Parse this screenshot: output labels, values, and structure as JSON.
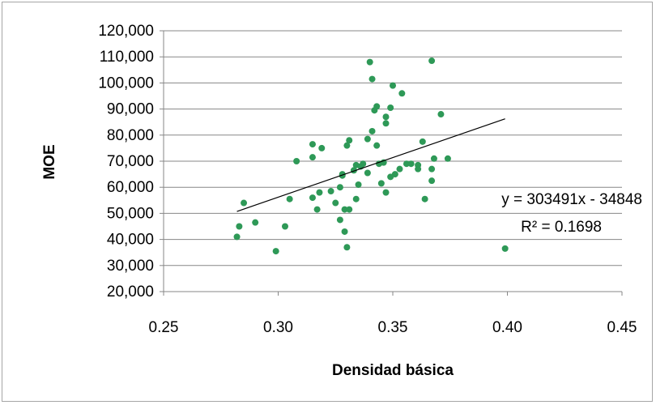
{
  "chart_data": {
    "type": "scatter",
    "xlabel": "Densidad básica",
    "ylabel": "MOE",
    "xlim": [
      0.25,
      0.45
    ],
    "ylim": [
      20000,
      120000
    ],
    "x_ticks": [
      "0.25",
      "0.30",
      "0.35",
      "0.40",
      "0.45"
    ],
    "y_ticks": [
      "20,000",
      "30,000",
      "40,000",
      "50,000",
      "60,000",
      "70,000",
      "80,000",
      "90,000",
      "100,000",
      "110,000",
      "120,000"
    ],
    "grid": "horizontal",
    "point_color": "#2e9957",
    "series": [
      {
        "points": [
          [
            0.282,
            41000
          ],
          [
            0.283,
            45000
          ],
          [
            0.285,
            54000
          ],
          [
            0.29,
            46500
          ],
          [
            0.299,
            35500
          ],
          [
            0.303,
            45000
          ],
          [
            0.305,
            55500
          ],
          [
            0.308,
            70000
          ],
          [
            0.315,
            76500
          ],
          [
            0.315,
            71500
          ],
          [
            0.315,
            56000
          ],
          [
            0.317,
            51500
          ],
          [
            0.318,
            58000
          ],
          [
            0.319,
            75000
          ],
          [
            0.323,
            58500
          ],
          [
            0.325,
            54000
          ],
          [
            0.327,
            47500
          ],
          [
            0.327,
            60000
          ],
          [
            0.328,
            65000
          ],
          [
            0.328,
            64500
          ],
          [
            0.329,
            43000
          ],
          [
            0.329,
            51500
          ],
          [
            0.33,
            37000
          ],
          [
            0.33,
            76000
          ],
          [
            0.331,
            78000
          ],
          [
            0.331,
            51500
          ],
          [
            0.333,
            66500
          ],
          [
            0.334,
            55500
          ],
          [
            0.334,
            68500
          ],
          [
            0.335,
            61000
          ],
          [
            0.336,
            68000
          ],
          [
            0.337,
            69000
          ],
          [
            0.339,
            78500
          ],
          [
            0.339,
            65500
          ],
          [
            0.34,
            108000
          ],
          [
            0.341,
            101500
          ],
          [
            0.341,
            81500
          ],
          [
            0.342,
            89500
          ],
          [
            0.343,
            91000
          ],
          [
            0.343,
            76000
          ],
          [
            0.344,
            69000
          ],
          [
            0.345,
            61500
          ],
          [
            0.346,
            69500
          ],
          [
            0.347,
            84500
          ],
          [
            0.347,
            87000
          ],
          [
            0.347,
            58000
          ],
          [
            0.349,
            90500
          ],
          [
            0.349,
            64000
          ],
          [
            0.35,
            99000
          ],
          [
            0.351,
            65000
          ],
          [
            0.353,
            67000
          ],
          [
            0.354,
            96000
          ],
          [
            0.356,
            69000
          ],
          [
            0.358,
            69000
          ],
          [
            0.361,
            68500
          ],
          [
            0.361,
            67000
          ],
          [
            0.363,
            77500
          ],
          [
            0.364,
            55500
          ],
          [
            0.367,
            108500
          ],
          [
            0.367,
            67000
          ],
          [
            0.367,
            62500
          ],
          [
            0.368,
            71000
          ],
          [
            0.371,
            88000
          ],
          [
            0.374,
            71000
          ],
          [
            0.399,
            36500
          ]
        ]
      }
    ],
    "trendline": {
      "x_start": 0.282,
      "x_end": 0.399,
      "slope": 303491,
      "intercept": -34848,
      "equation": "y = 303491x - 34848",
      "r2": "R² = 0.1698"
    }
  }
}
